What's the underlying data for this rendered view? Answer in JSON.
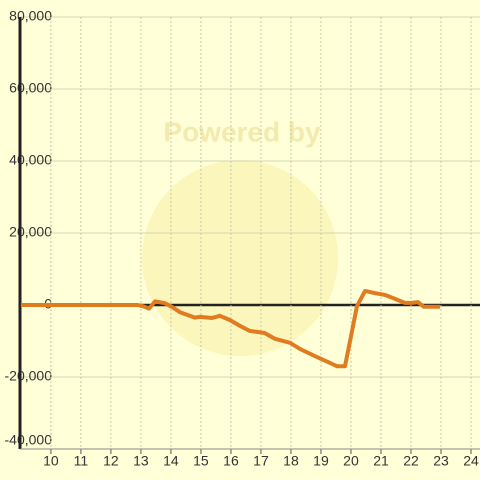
{
  "chart_data": {
    "type": "line",
    "watermark": "Powered by",
    "x": [
      9,
      12.9,
      13.13,
      13.27,
      13.47,
      13.8,
      14.03,
      14.3,
      14.8,
      14.97,
      15.37,
      15.63,
      15.97,
      16.3,
      16.63,
      16.9,
      17.13,
      17.47,
      17.97,
      18.3,
      18.8,
      19.3,
      19.53,
      19.8,
      19.97,
      20.2,
      20.47,
      20.8,
      21.13,
      21.47,
      21.8,
      22.03,
      22.23,
      22.43,
      22.97
    ],
    "series": [
      {
        "color": "#e07b20",
        "values": [
          0,
          0,
          -500,
          -1000,
          1000,
          500,
          -500,
          -2000,
          -3500,
          -3300,
          -3600,
          -3000,
          -4200,
          -5800,
          -7200,
          -7500,
          -7800,
          -9400,
          -10500,
          -12200,
          -14200,
          -16100,
          -17000,
          -17000,
          -10000,
          -300,
          3900,
          3300,
          2800,
          1700,
          600,
          600,
          800,
          -500,
          -500
        ]
      }
    ],
    "xlim": [
      8.97,
      24.3
    ],
    "xticks": [
      10,
      11,
      12,
      13,
      14,
      15,
      16,
      17,
      18,
      19,
      20,
      21,
      22,
      23,
      24
    ],
    "ylim": [
      -40000,
      80000
    ],
    "yticks": [
      {
        "value": -40000,
        "label": "-40,000"
      },
      {
        "value": -20000,
        "label": "-20,000"
      },
      0,
      {
        "value": 20000,
        "label": "20,000"
      },
      {
        "value": 40000,
        "label": "40,000"
      },
      {
        "value": 60000,
        "label": "60,000"
      },
      {
        "value": 80000,
        "label": "80,000"
      }
    ],
    "grid": true
  }
}
